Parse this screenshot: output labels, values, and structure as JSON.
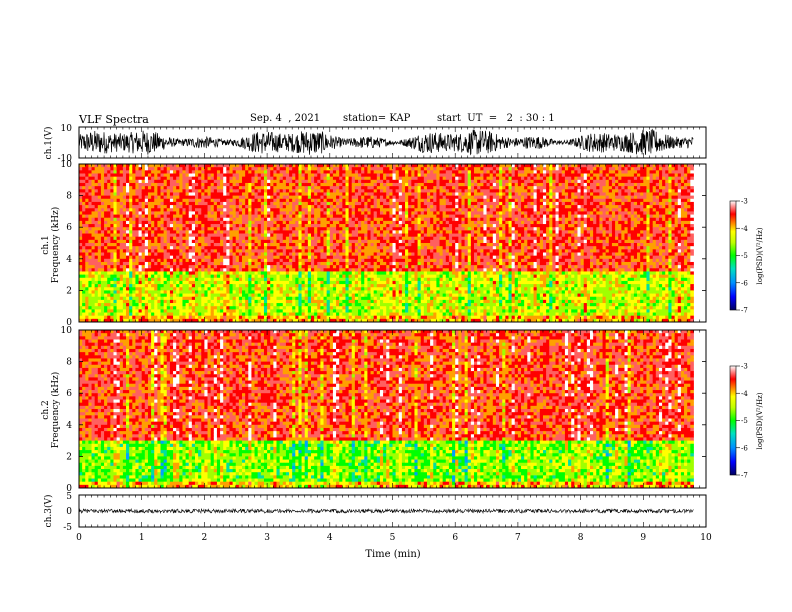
{
  "header": {
    "title": "VLF Spectra",
    "date": "Sep. 4  , 2021",
    "station": "station= KAP",
    "start": "start  UT  =   2  : 30 : 1"
  },
  "chart_data": [
    {
      "type": "line",
      "panel": "ch1-waveform",
      "ylabel": "ch.1(V)",
      "ylim": [
        -10,
        10
      ],
      "yticks": [
        "10",
        "-10"
      ],
      "xlim": [
        0,
        10
      ],
      "note_value_range": "signal oscillates roughly between -8 and +8 V over 0–9.8 min"
    },
    {
      "type": "heatmap",
      "panel": "ch1-spectrogram",
      "ylabel": "ch.1\nFrequency (kHz)",
      "ylabel_line1": "ch.1",
      "ylabel_line2": "Frequency (kHz)",
      "ylim": [
        0,
        10
      ],
      "yticks": [
        "0",
        "2",
        "4",
        "6",
        "8",
        "10"
      ],
      "xlim": [
        0,
        10
      ],
      "data_extent_min": 9.8,
      "colorbar": {
        "label": "log(PSD)(V²/Hz)",
        "range": [
          -7,
          -3
        ],
        "ticks": [
          "-3",
          "-4",
          "-5",
          "-6",
          "-7"
        ]
      },
      "bands": [
        {
          "from_khz": 3.0,
          "to_khz": 10.0,
          "level": -3.8
        },
        {
          "from_khz": 0.4,
          "to_khz": 3.2,
          "level": -4.8
        },
        {
          "from_khz": 0.0,
          "to_khz": 0.4,
          "level": -4.3
        }
      ]
    },
    {
      "type": "heatmap",
      "panel": "ch2-spectrogram",
      "ylabel_line1": "ch.2",
      "ylabel_line2": "Frequency (kHz)",
      "ylim": [
        0,
        10
      ],
      "yticks": [
        "0",
        "2",
        "4",
        "6",
        "8",
        "10"
      ],
      "xlim": [
        0,
        10
      ],
      "data_extent_min": 9.8,
      "colorbar": {
        "label": "log(PSD)(V²/Hz)",
        "range": [
          -7,
          -3
        ],
        "ticks": [
          "-3",
          "-4",
          "-5",
          "-6",
          "-7"
        ]
      },
      "bands": [
        {
          "from_khz": 3.0,
          "to_khz": 10.0,
          "level": -3.8
        },
        {
          "from_khz": 0.4,
          "to_khz": 3.0,
          "level": -5.1
        },
        {
          "from_khz": 0.0,
          "to_khz": 0.4,
          "level": -4.4
        }
      ]
    },
    {
      "type": "line",
      "panel": "ch3-waveform",
      "ylabel": "ch.3(V)",
      "ylim": [
        -5,
        5
      ],
      "yticks": [
        "5",
        "0",
        "-5"
      ],
      "xlim": [
        0,
        10
      ],
      "mean_value": 0,
      "amplitude": 0.6
    }
  ],
  "xaxis": {
    "label": "Time (min)",
    "ticks": [
      "0",
      "1",
      "2",
      "3",
      "4",
      "5",
      "6",
      "7",
      "8",
      "9",
      "10"
    ]
  },
  "colors": {
    "colormap": [
      "#000080",
      "#0000ff",
      "#00a0ff",
      "#00e0a0",
      "#00ff00",
      "#a0ff00",
      "#ffff00",
      "#ffa000",
      "#ff0000",
      "#ff6060",
      "#ffffff"
    ]
  }
}
